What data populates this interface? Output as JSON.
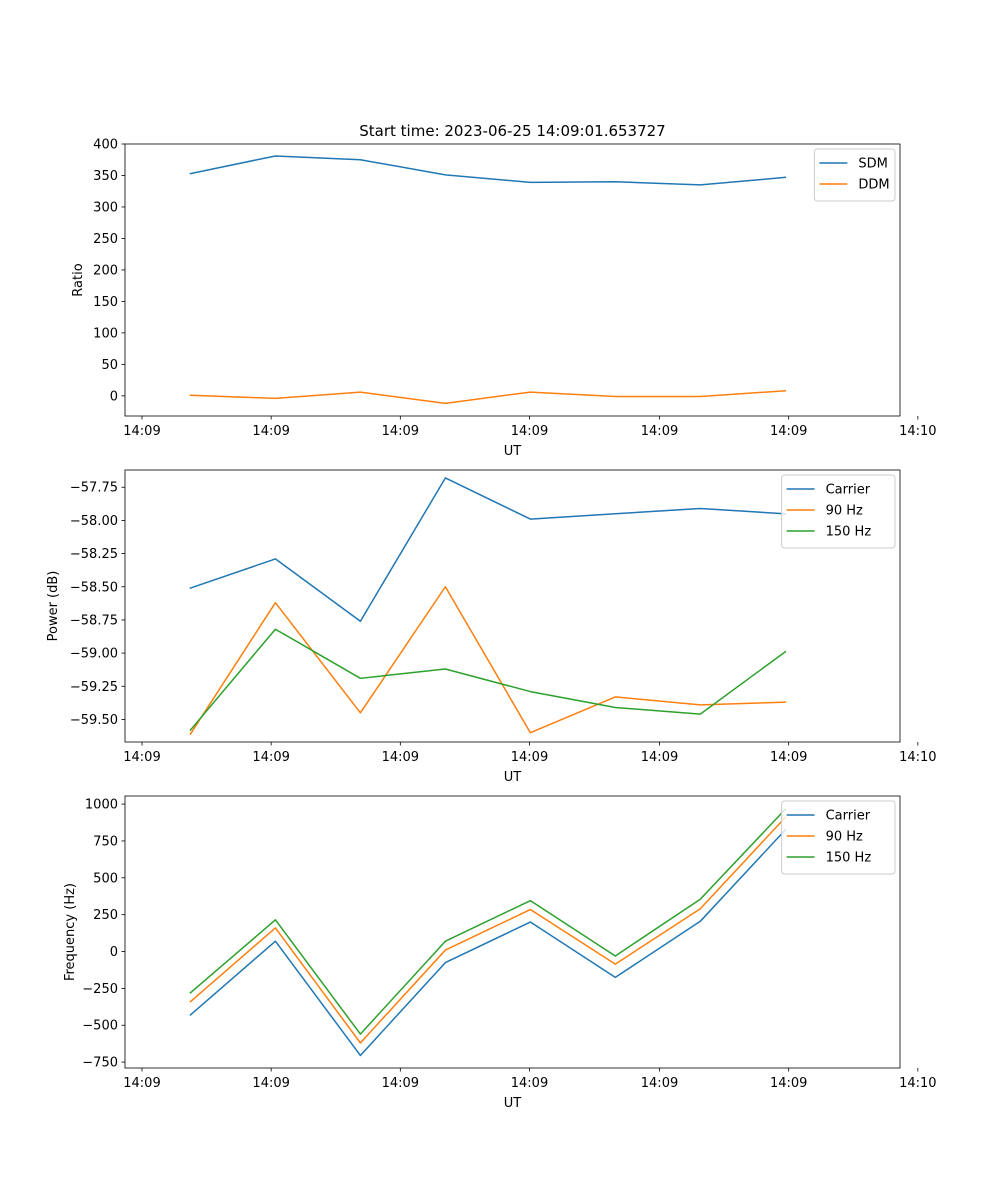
{
  "figure_title": "Start time: 2023-06-25 14:09:01.653727",
  "chart_data": [
    {
      "type": "line",
      "title": "Start time: 2023-06-25 14:09:01.653727",
      "xlabel": "UT",
      "ylabel": "Ratio",
      "x": [
        1,
        2,
        3,
        4,
        5,
        6,
        7,
        8
      ],
      "xlim": [
        0.23,
        9.35
      ],
      "x_ticks": [
        0.43,
        1.95,
        3.47,
        4.99,
        6.52,
        8.04,
        9.56
      ],
      "x_tick_labels": [
        "14:09",
        "14:09",
        "14:09",
        "14:09",
        "14:09",
        "14:09",
        "14:10"
      ],
      "ylim": [
        -32,
        400
      ],
      "y_ticks": [
        0,
        50,
        100,
        150,
        200,
        250,
        300,
        350,
        400
      ],
      "y_tick_labels": [
        "0",
        "50",
        "100",
        "150",
        "200",
        "250",
        "300",
        "350",
        "400"
      ],
      "grid": false,
      "legend": "top-right",
      "series": [
        {
          "name": "SDM",
          "color": "#1f77b4",
          "values": [
            353,
            381,
            375,
            351,
            339,
            340,
            335,
            347
          ]
        },
        {
          "name": "DDM",
          "color": "#ff7f0e",
          "values": [
            1,
            -4,
            6,
            -12,
            6,
            -1,
            -1,
            8
          ]
        }
      ]
    },
    {
      "type": "line",
      "xlabel": "UT",
      "ylabel": "Power (dB)",
      "x": [
        1,
        2,
        3,
        4,
        5,
        6,
        7,
        8
      ],
      "xlim": [
        0.23,
        9.35
      ],
      "x_ticks": [
        0.43,
        1.95,
        3.47,
        4.99,
        6.52,
        8.04,
        9.56
      ],
      "x_tick_labels": [
        "14:09",
        "14:09",
        "14:09",
        "14:09",
        "14:09",
        "14:09",
        "14:10"
      ],
      "ylim": [
        -59.67,
        -57.62
      ],
      "y_ticks": [
        -59.5,
        -59.25,
        -59.0,
        -58.75,
        -58.5,
        -58.25,
        -58.0,
        -57.75
      ],
      "y_tick_labels": [
        "−59.50",
        "−59.25",
        "−59.00",
        "−58.75",
        "−58.50",
        "−58.25",
        "−58.00",
        "−57.75"
      ],
      "grid": false,
      "legend": "top-right",
      "series": [
        {
          "name": "Carrier",
          "color": "#1f77b4",
          "values": [
            -58.51,
            -58.29,
            -58.76,
            -57.68,
            -57.99,
            -57.95,
            -57.91,
            -57.95
          ]
        },
        {
          "name": "90 Hz",
          "color": "#ff7f0e",
          "values": [
            -59.61,
            -58.62,
            -59.45,
            -58.5,
            -59.6,
            -59.33,
            -59.39,
            -59.37
          ]
        },
        {
          "name": "150 Hz",
          "color": "#2ca02c",
          "values": [
            -59.58,
            -58.82,
            -59.19,
            -59.12,
            -59.29,
            -59.41,
            -59.46,
            -58.99
          ]
        }
      ]
    },
    {
      "type": "line",
      "xlabel": "UT",
      "ylabel": "Frequency (Hz)",
      "x": [
        1,
        2,
        3,
        4,
        5,
        6,
        7,
        8
      ],
      "xlim": [
        0.23,
        9.35
      ],
      "x_ticks": [
        0.43,
        1.95,
        3.47,
        4.99,
        6.52,
        8.04,
        9.56
      ],
      "x_tick_labels": [
        "14:09",
        "14:09",
        "14:09",
        "14:09",
        "14:09",
        "14:09",
        "14:10"
      ],
      "ylim": [
        -790,
        1055
      ],
      "y_ticks": [
        -750,
        -500,
        -250,
        0,
        250,
        500,
        750,
        1000
      ],
      "y_tick_labels": [
        "−750",
        "−500",
        "−250",
        "0",
        "250",
        "500",
        "750",
        "1000"
      ],
      "grid": false,
      "legend": "top-right",
      "series": [
        {
          "name": "Carrier",
          "color": "#1f77b4",
          "values": [
            -430,
            70,
            -705,
            -75,
            200,
            -175,
            205,
            825
          ]
        },
        {
          "name": "90 Hz",
          "color": "#ff7f0e",
          "values": [
            -340,
            160,
            -620,
            10,
            285,
            -85,
            290,
            910
          ]
        },
        {
          "name": "150 Hz",
          "color": "#2ca02c",
          "values": [
            -280,
            215,
            -560,
            70,
            345,
            -30,
            355,
            965
          ]
        }
      ]
    }
  ]
}
